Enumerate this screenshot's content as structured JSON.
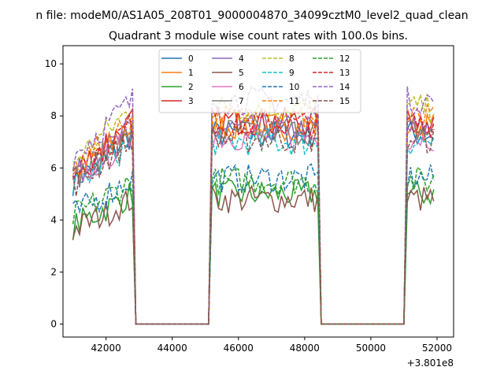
{
  "figure": {
    "suptitle": "n file: modeM0/AS1A05_208T01_9000004870_34099cztM0_level2_quad_clean"
  },
  "chart_data": {
    "type": "line",
    "title": "Quadrant 3 module wise count rates with 100.0s bins.",
    "xlabel": "",
    "ylabel": "",
    "x_offset_label": "+3.801e8",
    "xlim": [
      40700,
      52500
    ],
    "ylim": [
      -0.5,
      10.7
    ],
    "x_ticks": [
      42000,
      44000,
      46000,
      48000,
      50000,
      52000
    ],
    "x_tick_labels": [
      "42000",
      "44000",
      "46000",
      "48000",
      "50000",
      "52000"
    ],
    "y_ticks": [
      0,
      2,
      4,
      6,
      8,
      10
    ],
    "y_tick_labels": [
      "0",
      "2",
      "4",
      "6",
      "8",
      "10"
    ],
    "grid": false,
    "legend": {
      "placement": "top-center",
      "ncol": 4
    },
    "series": [
      {
        "name": "0",
        "color": "#1f77b4",
        "dash": false
      },
      {
        "name": "1",
        "color": "#ff7f0e",
        "dash": false
      },
      {
        "name": "2",
        "color": "#2ca02c",
        "dash": false
      },
      {
        "name": "3",
        "color": "#d62728",
        "dash": false
      },
      {
        "name": "4",
        "color": "#9467bd",
        "dash": false
      },
      {
        "name": "5",
        "color": "#8c564b",
        "dash": false
      },
      {
        "name": "6",
        "color": "#e377c2",
        "dash": false
      },
      {
        "name": "7",
        "color": "#7f7f7f",
        "dash": false
      },
      {
        "name": "8",
        "color": "#bcbd22",
        "dash": true
      },
      {
        "name": "9",
        "color": "#17becf",
        "dash": true
      },
      {
        "name": "10",
        "color": "#1f77b4",
        "dash": true
      },
      {
        "name": "11",
        "color": "#ff7f0e",
        "dash": true
      },
      {
        "name": "12",
        "color": "#2ca02c",
        "dash": true
      },
      {
        "name": "13",
        "color": "#d62728",
        "dash": true
      },
      {
        "name": "14",
        "color": "#9467bd",
        "dash": true
      },
      {
        "name": "15",
        "color": "#8c564b",
        "dash": true
      }
    ],
    "segments": {
      "x_start": [
        41000,
        45200,
        51100
      ],
      "x_end": [
        42800,
        48400,
        51900
      ],
      "off_level": 0
    },
    "levels_per_series": [
      7.3,
      7.6,
      5.0,
      7.8,
      7.5,
      4.8,
      7.2,
      7.4,
      8.3,
      7.0,
      5.6,
      7.9,
      5.5,
      7.7,
      8.6,
      7.1
    ]
  }
}
